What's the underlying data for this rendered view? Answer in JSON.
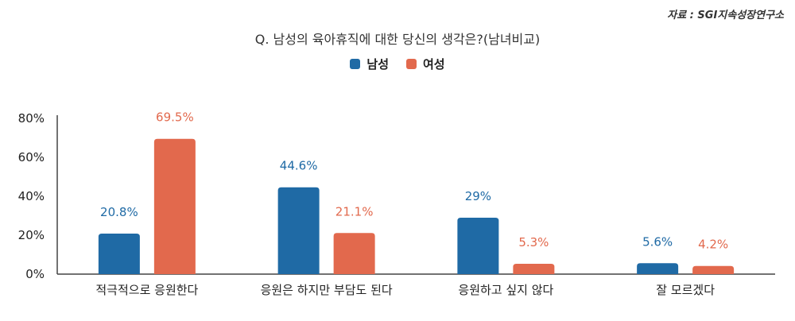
{
  "source": "자료 : SGI지속성장연구소",
  "chart_data": {
    "type": "bar",
    "title": "Q. 남성의 육아휴직에 대한 당신의 생각은?(남녀비교)",
    "categories": [
      "적극적으로 응원한다",
      "응원은 하지만 부담도 된다",
      "응원하고 싶지 않다",
      "잘 모르겠다"
    ],
    "series": [
      {
        "name": "남성",
        "color": "#1f6aa5",
        "values": [
          20.8,
          44.6,
          29,
          5.6
        ],
        "labels": [
          "20.8%",
          "44.6%",
          "29%",
          "5.6%"
        ]
      },
      {
        "name": "여성",
        "color": "#e2694d",
        "values": [
          69.5,
          21.1,
          5.3,
          4.2
        ],
        "labels": [
          "69.5%",
          "21.1%",
          "5.3%",
          "4.2%"
        ]
      }
    ],
    "yticks": [
      0,
      20,
      40,
      60,
      80
    ],
    "ytick_labels": [
      "0%",
      "20%",
      "40%",
      "60%",
      "80%"
    ],
    "ylim": [
      0,
      80
    ],
    "legend_position": "top-center",
    "grid": false
  }
}
